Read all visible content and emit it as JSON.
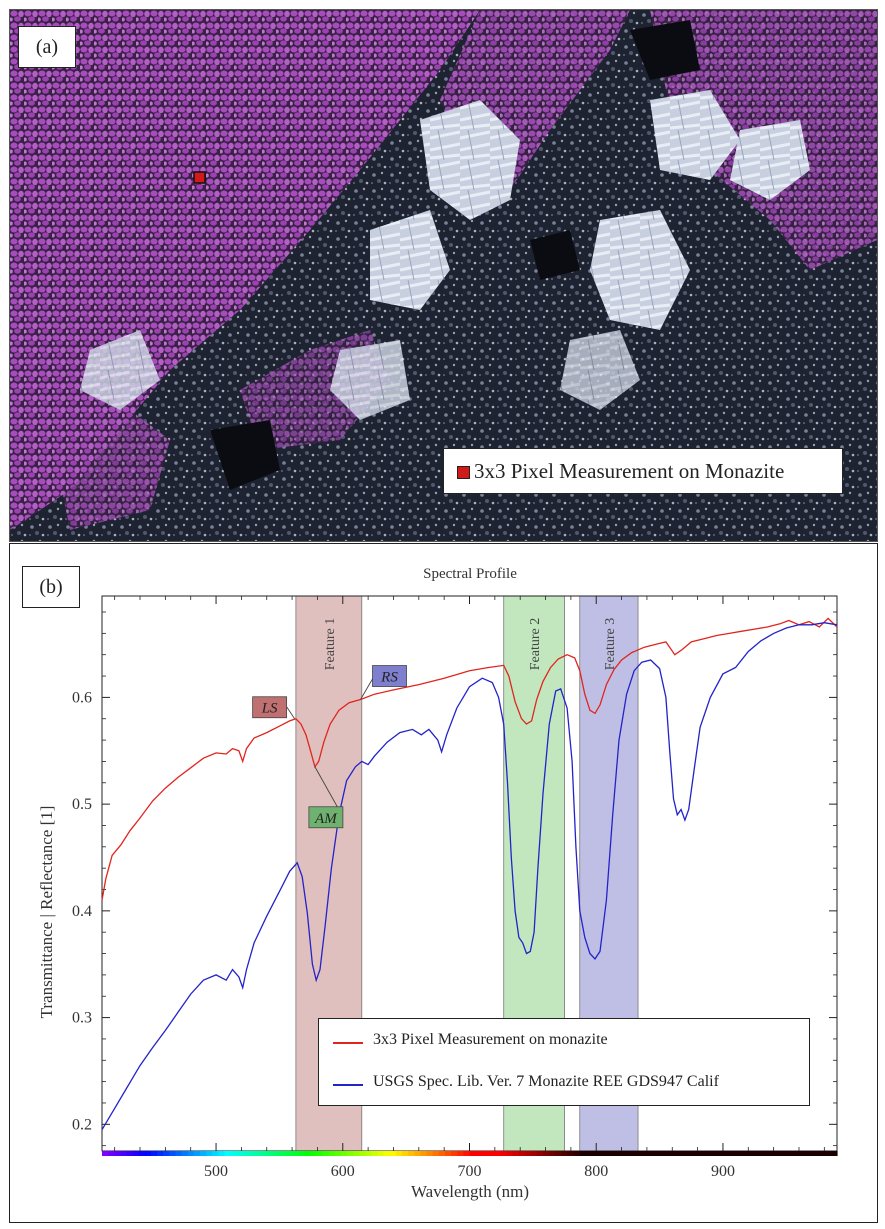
{
  "panel_a": {
    "label": "(a)",
    "legend_label": "3x3 Pixel Measurement on Monazite",
    "colors": {
      "monazite": "#9b3fae",
      "marker": "#d21a1a",
      "background": "#1a1d2a",
      "crystals": "#c9d1e2"
    }
  },
  "panel_b": {
    "label": "(b)"
  },
  "chart_data": {
    "type": "line",
    "title": "Spectral Profile",
    "xlabel": "Wavelength (nm)",
    "ylabel": "Transmittance | Reflectance [1]",
    "xlim": [
      410,
      990
    ],
    "ylim": [
      0.175,
      0.695
    ],
    "xticks": [
      500,
      600,
      700,
      800,
      900
    ],
    "yticks": [
      0.2,
      0.3,
      0.4,
      0.5,
      0.6
    ],
    "xtick_labels": [
      "500",
      "600",
      "700",
      "800",
      "900"
    ],
    "ytick_labels": [
      "0.2",
      "0.3",
      "0.4",
      "0.5",
      "0.6"
    ],
    "grid": false,
    "legend_position": "bottom-right",
    "features": [
      {
        "label": "Feature 1",
        "x0": 563,
        "x1": 615,
        "color": "#c78c8a"
      },
      {
        "label": "Feature 2",
        "x0": 727,
        "x1": 775,
        "color": "#8fd38b"
      },
      {
        "label": "Feature 3",
        "x0": 787,
        "x1": 833,
        "color": "#8b8bd0"
      }
    ],
    "annotations": [
      {
        "text": "LS",
        "x": 562,
        "y": 0.58,
        "color": "#c07070"
      },
      {
        "text": "AM",
        "x": 578,
        "y": 0.535,
        "color": "#6fb26f"
      },
      {
        "text": "RS",
        "x": 614,
        "y": 0.598,
        "color": "#7f7fd0"
      }
    ],
    "series": [
      {
        "name": "3x3 Pixel Measurement on monazite",
        "color": "#e0251e",
        "points": [
          [
            410,
            0.41
          ],
          [
            413,
            0.43
          ],
          [
            418,
            0.452
          ],
          [
            425,
            0.462
          ],
          [
            432,
            0.475
          ],
          [
            440,
            0.487
          ],
          [
            450,
            0.503
          ],
          [
            460,
            0.515
          ],
          [
            470,
            0.525
          ],
          [
            480,
            0.534
          ],
          [
            490,
            0.543
          ],
          [
            500,
            0.548
          ],
          [
            508,
            0.547
          ],
          [
            513,
            0.552
          ],
          [
            518,
            0.55
          ],
          [
            521,
            0.54
          ],
          [
            524,
            0.552
          ],
          [
            530,
            0.562
          ],
          [
            540,
            0.567
          ],
          [
            550,
            0.573
          ],
          [
            558,
            0.578
          ],
          [
            563,
            0.58
          ],
          [
            567,
            0.575
          ],
          [
            571,
            0.565
          ],
          [
            575,
            0.548
          ],
          [
            578,
            0.535
          ],
          [
            581,
            0.54
          ],
          [
            585,
            0.558
          ],
          [
            590,
            0.575
          ],
          [
            597,
            0.588
          ],
          [
            605,
            0.595
          ],
          [
            614,
            0.598
          ],
          [
            625,
            0.603
          ],
          [
            640,
            0.607
          ],
          [
            660,
            0.612
          ],
          [
            680,
            0.618
          ],
          [
            700,
            0.625
          ],
          [
            715,
            0.628
          ],
          [
            727,
            0.63
          ],
          [
            731,
            0.62
          ],
          [
            736,
            0.596
          ],
          [
            741,
            0.58
          ],
          [
            745,
            0.575
          ],
          [
            749,
            0.578
          ],
          [
            753,
            0.598
          ],
          [
            758,
            0.615
          ],
          [
            764,
            0.628
          ],
          [
            770,
            0.636
          ],
          [
            777,
            0.64
          ],
          [
            783,
            0.637
          ],
          [
            787,
            0.625
          ],
          [
            791,
            0.603
          ],
          [
            795,
            0.588
          ],
          [
            799,
            0.585
          ],
          [
            803,
            0.593
          ],
          [
            808,
            0.612
          ],
          [
            814,
            0.626
          ],
          [
            820,
            0.635
          ],
          [
            828,
            0.642
          ],
          [
            838,
            0.647
          ],
          [
            848,
            0.65
          ],
          [
            855,
            0.652
          ],
          [
            862,
            0.64
          ],
          [
            868,
            0.645
          ],
          [
            875,
            0.652
          ],
          [
            885,
            0.655
          ],
          [
            895,
            0.658
          ],
          [
            905,
            0.66
          ],
          [
            915,
            0.662
          ],
          [
            925,
            0.664
          ],
          [
            935,
            0.666
          ],
          [
            945,
            0.669
          ],
          [
            952,
            0.672
          ],
          [
            960,
            0.668
          ],
          [
            968,
            0.671
          ],
          [
            976,
            0.666
          ],
          [
            983,
            0.674
          ],
          [
            990,
            0.666
          ]
        ]
      },
      {
        "name": "USGS Spec. Lib. Ver. 7 Monazite REE GDS947 Calif",
        "color": "#2323c9",
        "points": [
          [
            410,
            0.195
          ],
          [
            420,
            0.215
          ],
          [
            430,
            0.235
          ],
          [
            440,
            0.255
          ],
          [
            450,
            0.272
          ],
          [
            460,
            0.288
          ],
          [
            470,
            0.305
          ],
          [
            480,
            0.322
          ],
          [
            490,
            0.335
          ],
          [
            500,
            0.34
          ],
          [
            508,
            0.335
          ],
          [
            513,
            0.345
          ],
          [
            518,
            0.338
          ],
          [
            521,
            0.328
          ],
          [
            524,
            0.345
          ],
          [
            530,
            0.37
          ],
          [
            540,
            0.395
          ],
          [
            550,
            0.418
          ],
          [
            558,
            0.437
          ],
          [
            564,
            0.445
          ],
          [
            568,
            0.432
          ],
          [
            572,
            0.398
          ],
          [
            576,
            0.35
          ],
          [
            579,
            0.335
          ],
          [
            582,
            0.345
          ],
          [
            586,
            0.385
          ],
          [
            591,
            0.44
          ],
          [
            597,
            0.49
          ],
          [
            603,
            0.522
          ],
          [
            610,
            0.535
          ],
          [
            615,
            0.54
          ],
          [
            620,
            0.537
          ],
          [
            625,
            0.545
          ],
          [
            635,
            0.558
          ],
          [
            645,
            0.567
          ],
          [
            655,
            0.57
          ],
          [
            662,
            0.565
          ],
          [
            668,
            0.57
          ],
          [
            675,
            0.56
          ],
          [
            678,
            0.549
          ],
          [
            682,
            0.565
          ],
          [
            690,
            0.59
          ],
          [
            700,
            0.61
          ],
          [
            710,
            0.618
          ],
          [
            718,
            0.614
          ],
          [
            723,
            0.6
          ],
          [
            727,
            0.575
          ],
          [
            730,
            0.52
          ],
          [
            733,
            0.45
          ],
          [
            736,
            0.4
          ],
          [
            739,
            0.375
          ],
          [
            742,
            0.37
          ],
          [
            745,
            0.36
          ],
          [
            748,
            0.362
          ],
          [
            751,
            0.38
          ],
          [
            754,
            0.44
          ],
          [
            758,
            0.51
          ],
          [
            763,
            0.575
          ],
          [
            768,
            0.606
          ],
          [
            772,
            0.608
          ],
          [
            777,
            0.59
          ],
          [
            781,
            0.54
          ],
          [
            784,
            0.46
          ],
          [
            787,
            0.4
          ],
          [
            791,
            0.375
          ],
          [
            795,
            0.36
          ],
          [
            799,
            0.355
          ],
          [
            803,
            0.362
          ],
          [
            808,
            0.41
          ],
          [
            813,
            0.49
          ],
          [
            818,
            0.56
          ],
          [
            824,
            0.603
          ],
          [
            830,
            0.625
          ],
          [
            836,
            0.633
          ],
          [
            843,
            0.635
          ],
          [
            850,
            0.627
          ],
          [
            855,
            0.6
          ],
          [
            858,
            0.55
          ],
          [
            861,
            0.505
          ],
          [
            864,
            0.49
          ],
          [
            867,
            0.495
          ],
          [
            870,
            0.485
          ],
          [
            873,
            0.495
          ],
          [
            877,
            0.53
          ],
          [
            882,
            0.572
          ],
          [
            890,
            0.6
          ],
          [
            900,
            0.622
          ],
          [
            910,
            0.628
          ],
          [
            920,
            0.643
          ],
          [
            930,
            0.653
          ],
          [
            940,
            0.66
          ],
          [
            950,
            0.665
          ],
          [
            960,
            0.668
          ],
          [
            970,
            0.668
          ],
          [
            980,
            0.67
          ],
          [
            990,
            0.668
          ]
        ]
      }
    ]
  }
}
